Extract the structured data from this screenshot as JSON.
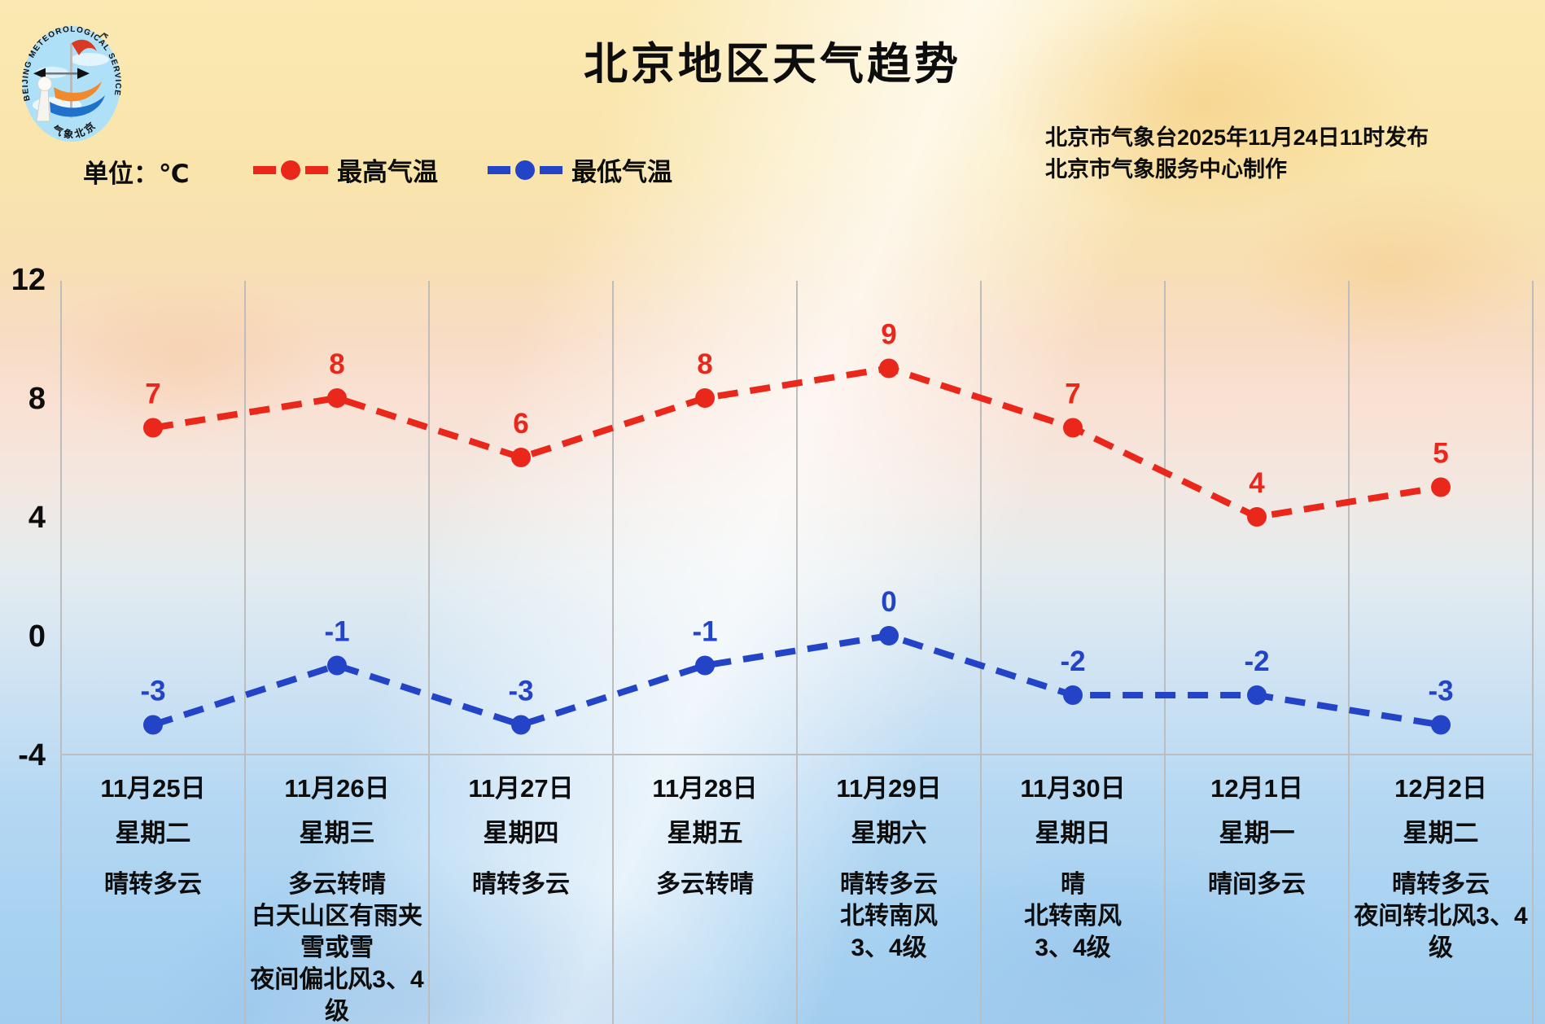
{
  "logo": {
    "ring_text": "BEIJING METEOROLOGICAL SERVICE",
    "bottom_text": "气象北京"
  },
  "header": {
    "title": "北京地区天气趋势",
    "publisher_line1": "北京市气象台2025年11月24日11时发布",
    "publisher_line2": "北京市气象服务中心制作"
  },
  "legend": {
    "unit_label": "单位：℃",
    "items": [
      {
        "label": "最高气温",
        "color": "#e9271b"
      },
      {
        "label": "最低气温",
        "color": "#2444c8"
      }
    ]
  },
  "chart_data": {
    "type": "line",
    "title": "北京地区天气趋势",
    "unit": "℃",
    "y_ticks": [
      12,
      8,
      4,
      0,
      -4
    ],
    "ylim": [
      -4,
      12
    ],
    "grid": {
      "vertical": true,
      "horizontal_at": -4,
      "color": "#bdbdbd"
    },
    "legend_position": "top-left",
    "categories": [
      {
        "date": "11月25日",
        "weekday": "星期二",
        "weather_lines": [
          "晴转多云"
        ]
      },
      {
        "date": "11月26日",
        "weekday": "星期三",
        "weather_lines": [
          "多云转晴",
          "白天山区有雨夹",
          "雪或雪",
          "夜间偏北风3、4",
          "级"
        ]
      },
      {
        "date": "11月27日",
        "weekday": "星期四",
        "weather_lines": [
          "晴转多云"
        ]
      },
      {
        "date": "11月28日",
        "weekday": "星期五",
        "weather_lines": [
          "多云转晴"
        ]
      },
      {
        "date": "11月29日",
        "weekday": "星期六",
        "weather_lines": [
          "晴转多云",
          "北转南风",
          "3、4级"
        ]
      },
      {
        "date": "11月30日",
        "weekday": "星期日",
        "weather_lines": [
          "晴",
          "北转南风",
          "3、4级"
        ]
      },
      {
        "date": "12月1日",
        "weekday": "星期一",
        "weather_lines": [
          "晴间多云"
        ]
      },
      {
        "date": "12月2日",
        "weekday": "星期二",
        "weather_lines": [
          "晴转多云",
          "夜间转北风3、4",
          "级"
        ]
      }
    ],
    "series": [
      {
        "name": "最高气温",
        "color": "#e9271b",
        "values": [
          7,
          8,
          6,
          8,
          9,
          7,
          4,
          5
        ]
      },
      {
        "name": "最低气温",
        "color": "#2444c8",
        "values": [
          -3,
          -1,
          -3,
          -1,
          0,
          -2,
          -2,
          -3
        ]
      }
    ]
  }
}
